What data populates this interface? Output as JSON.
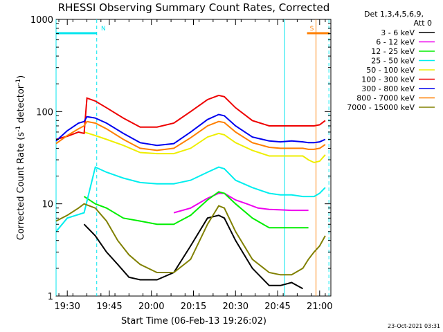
{
  "chart_data": {
    "type": "line",
    "title": "RHESSI Observing Summary Count Rates, Corrected",
    "xlabel": "Start Time (06-Feb-13 19:26:02)",
    "ylabel_main": "Corrected Count Rate (s",
    "ylabel_sup1": "-1",
    "ylabel_mid": " detector",
    "ylabel_sup2": "-1",
    "ylabel_end": ")",
    "y_scale": "log",
    "ylim": [
      1,
      1000
    ],
    "xlim_minutes": [
      0,
      98
    ],
    "x_ticks": [
      {
        "t": 4,
        "label": "19:30"
      },
      {
        "t": 19,
        "label": "19:45"
      },
      {
        "t": 34,
        "label": "20:00"
      },
      {
        "t": 49,
        "label": "20:15"
      },
      {
        "t": 64,
        "label": "20:30"
      },
      {
        "t": 79,
        "label": "20:45"
      },
      {
        "t": 94,
        "label": "21:00"
      }
    ],
    "y_ticks": [
      {
        "v": 1,
        "label": "1"
      },
      {
        "v": 10,
        "label": "10"
      },
      {
        "v": 100,
        "label": "100"
      },
      {
        "v": 1000,
        "label": "1000"
      }
    ],
    "legend_header": [
      "Det 1,3,4,5,6,9,",
      "Att 0"
    ],
    "legend_placement": "right",
    "timestamp": "23-Oct-2021 03:31",
    "markers": [
      {
        "label": "N",
        "t0": 0,
        "t1": 14.5,
        "color": "#00e5ee"
      },
      {
        "label": "S",
        "t0": 89.5,
        "t1": 97.5,
        "color": "#ff7f00"
      }
    ],
    "vlines": [
      {
        "t": 0,
        "color": "#00e5ee",
        "dash": false
      },
      {
        "t": 14.5,
        "color": "#00e5ee",
        "dash": true
      },
      {
        "t": 81.5,
        "color": "#00e5ee",
        "dash": false
      },
      {
        "t": 92.7,
        "color": "#ff7f00",
        "dash": false
      },
      {
        "t": 97.3,
        "color": "#00e5ee",
        "dash": true
      }
    ],
    "series": [
      {
        "name": "3 - 6 keV",
        "color": "#000000",
        "t": [
          10,
          14,
          18,
          22,
          26,
          30,
          36,
          42,
          48,
          54,
          58,
          60,
          64,
          70,
          76,
          80,
          84,
          88
        ],
        "values": [
          6,
          4.5,
          3,
          2.2,
          1.6,
          1.5,
          1.5,
          1.8,
          3.5,
          7,
          7.5,
          7,
          4,
          2,
          1.3,
          1.3,
          1.4,
          1.2
        ]
      },
      {
        "name": "6 - 12 keV",
        "color": "#ee00ee",
        "t": [
          42,
          48,
          54,
          58,
          60,
          64,
          68,
          72,
          76,
          80,
          84,
          88,
          90
        ],
        "values": [
          8,
          9,
          11.5,
          13,
          13,
          11,
          10,
          9,
          8.7,
          8.6,
          8.5,
          8.5,
          8.5
        ]
      },
      {
        "name": "12 - 25 keV",
        "color": "#00ee00",
        "t": [
          10,
          14,
          18,
          24,
          30,
          36,
          42,
          48,
          54,
          58,
          60,
          64,
          70,
          76,
          80,
          84,
          88,
          90
        ],
        "values": [
          12,
          10,
          9,
          7,
          6.5,
          6,
          6,
          7.5,
          11,
          13.5,
          13,
          10,
          7,
          5.5,
          5.5,
          5.5,
          5.5,
          5.5
        ]
      },
      {
        "name": "25 - 50 keV",
        "color": "#00eeee",
        "t": [
          0,
          4,
          10,
          14,
          18,
          24,
          30,
          36,
          42,
          48,
          54,
          58,
          60,
          64,
          70,
          76,
          80,
          84,
          88,
          90,
          92,
          94,
          96
        ],
        "values": [
          5,
          7,
          8,
          25,
          22,
          19,
          17,
          16.5,
          16.5,
          18,
          22,
          25,
          24,
          18,
          15,
          13,
          12.5,
          12.5,
          12,
          12,
          12,
          13,
          15
        ]
      },
      {
        "name": "50 - 100 keV",
        "color": "#eeee00",
        "t": [
          10,
          14,
          18,
          24,
          30,
          36,
          42,
          48,
          54,
          58,
          60,
          64,
          70,
          76,
          80,
          84,
          88,
          90,
          92,
          94,
          96
        ],
        "values": [
          60,
          55,
          50,
          43,
          36,
          35,
          35,
          40,
          53,
          58,
          56,
          46,
          38,
          33,
          33,
          33,
          33,
          30,
          28,
          29,
          34
        ]
      },
      {
        "name": "100 - 300 keV",
        "color": "#ee0000",
        "t": [
          0,
          4,
          8,
          10,
          11,
          14,
          18,
          24,
          30,
          36,
          42,
          48,
          54,
          58,
          60,
          64,
          70,
          76,
          80,
          84,
          88,
          90,
          92,
          94,
          96
        ],
        "values": [
          50,
          54,
          60,
          58,
          140,
          130,
          110,
          85,
          68,
          68,
          75,
          100,
          135,
          150,
          145,
          110,
          80,
          70,
          70,
          70,
          70,
          70,
          70,
          72,
          80
        ]
      },
      {
        "name": "300 - 800 keV",
        "color": "#0000ee",
        "t": [
          0,
          4,
          8,
          10,
          11,
          14,
          18,
          24,
          30,
          36,
          42,
          48,
          54,
          58,
          60,
          64,
          70,
          76,
          80,
          84,
          88,
          90,
          92,
          94,
          96
        ],
        "values": [
          48,
          62,
          75,
          78,
          88,
          85,
          75,
          58,
          46,
          43,
          45,
          60,
          82,
          93,
          90,
          70,
          53,
          48,
          47,
          48,
          47,
          46,
          46,
          47,
          50
        ]
      },
      {
        "name": "800 - 7000 keV",
        "color": "#ff7f00",
        "t": [
          0,
          4,
          8,
          10,
          11,
          14,
          18,
          24,
          30,
          36,
          42,
          48,
          54,
          58,
          60,
          64,
          70,
          76,
          80,
          84,
          88,
          90,
          92,
          94,
          96
        ],
        "values": [
          45,
          55,
          65,
          70,
          78,
          75,
          65,
          50,
          40,
          38,
          40,
          52,
          70,
          78,
          76,
          60,
          46,
          41,
          40,
          40,
          40,
          39,
          39,
          40,
          44
        ]
      },
      {
        "name": "7000 - 15000 keV",
        "color": "#808000",
        "t": [
          0,
          4,
          8,
          10,
          14,
          18,
          22,
          26,
          30,
          36,
          42,
          48,
          54,
          58,
          60,
          64,
          70,
          76,
          80,
          84,
          88,
          90,
          92,
          94,
          96
        ],
        "values": [
          6.5,
          7.5,
          9,
          10,
          9,
          6.5,
          4,
          2.8,
          2.2,
          1.8,
          1.8,
          2.5,
          6,
          9.5,
          9,
          5,
          2.5,
          1.8,
          1.7,
          1.7,
          2,
          2.5,
          3,
          3.5,
          4.5
        ]
      }
    ]
  }
}
